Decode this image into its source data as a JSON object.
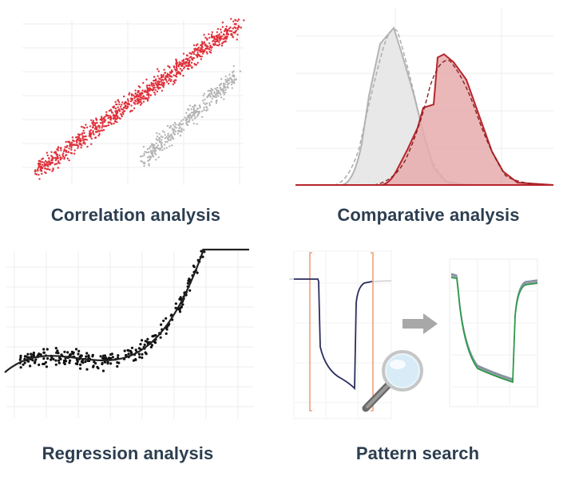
{
  "panels": {
    "correlation": {
      "caption": "Correlation analysis",
      "icon": "scatter-correlation-icon",
      "colors": {
        "primary": "#e0303a",
        "secondary": "#b5b5b5"
      }
    },
    "comparative": {
      "caption": "Comparative analysis",
      "icon": "distribution-comparison-icon",
      "colors": {
        "fill_a": "#e5e5e5",
        "line_a": "#b0b0b0",
        "fill_b": "#e7aeb0",
        "line_b": "#b5262b"
      }
    },
    "regression": {
      "caption": "Regression analysis",
      "icon": "regression-curve-icon",
      "colors": {
        "points": "#111111",
        "curve": "#222222"
      }
    },
    "pattern": {
      "caption": "Pattern search",
      "icon": "pattern-search-icon",
      "colors": {
        "trace": "#2b2d5e",
        "marker": "#f0a07a",
        "arrow": "#a8a8a8",
        "match": "#2e9a4a"
      }
    }
  }
}
